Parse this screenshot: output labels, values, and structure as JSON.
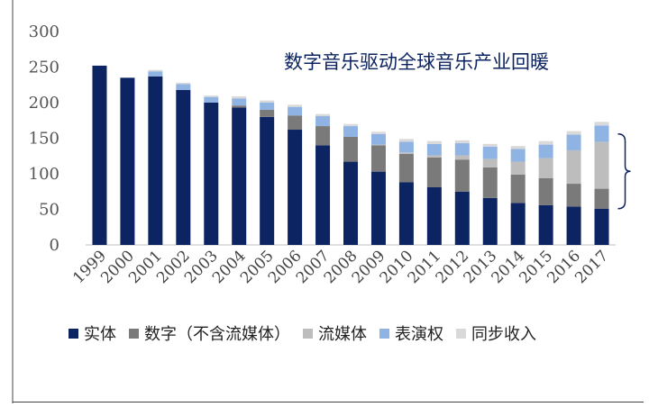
{
  "chart_data": {
    "type": "bar",
    "stacked": true,
    "title": "数字音乐驱动全球音乐产业回暖",
    "categories": [
      "1999",
      "2000",
      "2001",
      "2002",
      "2003",
      "2004",
      "2005",
      "2006",
      "2007",
      "2008",
      "2009",
      "2010",
      "2011",
      "2012",
      "2013",
      "2014",
      "2015",
      "2016",
      "2017"
    ],
    "ylim": [
      0,
      300
    ],
    "yticks": [
      0,
      50,
      100,
      150,
      200,
      250,
      300
    ],
    "grid": false,
    "legend_position": "bottom",
    "series": [
      {
        "name": "实体",
        "color": "#0c2461",
        "values": [
          252,
          235,
          237,
          218,
          200,
          193,
          180,
          162,
          140,
          117,
          103,
          88,
          81,
          75,
          66,
          59,
          56,
          54,
          51
        ]
      },
      {
        "name": "数字（不含流媒体）",
        "color": "#7a7a7a",
        "values": [
          0,
          0,
          0,
          0,
          0,
          3,
          10,
          20,
          27,
          35,
          37,
          40,
          42,
          45,
          43,
          40,
          38,
          32,
          28
        ]
      },
      {
        "name": "流媒体",
        "color": "#bdbdbd",
        "values": [
          0,
          0,
          0,
          0,
          0,
          0,
          0,
          0,
          0,
          0,
          1,
          2,
          3,
          6,
          12,
          18,
          28,
          47,
          66
        ]
      },
      {
        "name": "表演权",
        "color": "#8fb4e3",
        "values": [
          0,
          0,
          7,
          8,
          8,
          10,
          10,
          12,
          14,
          15,
          15,
          15,
          16,
          17,
          17,
          18,
          19,
          22,
          23
        ]
      },
      {
        "name": "同步收入",
        "color": "#d9d9d9",
        "values": [
          0,
          0,
          2,
          2,
          2,
          3,
          3,
          3,
          3,
          3,
          3,
          4,
          4,
          4,
          4,
          4,
          5,
          5,
          5
        ]
      }
    ],
    "annotation": {
      "type": "brace",
      "from": 51,
      "to": 156,
      "category": "2017",
      "side": "right"
    }
  }
}
